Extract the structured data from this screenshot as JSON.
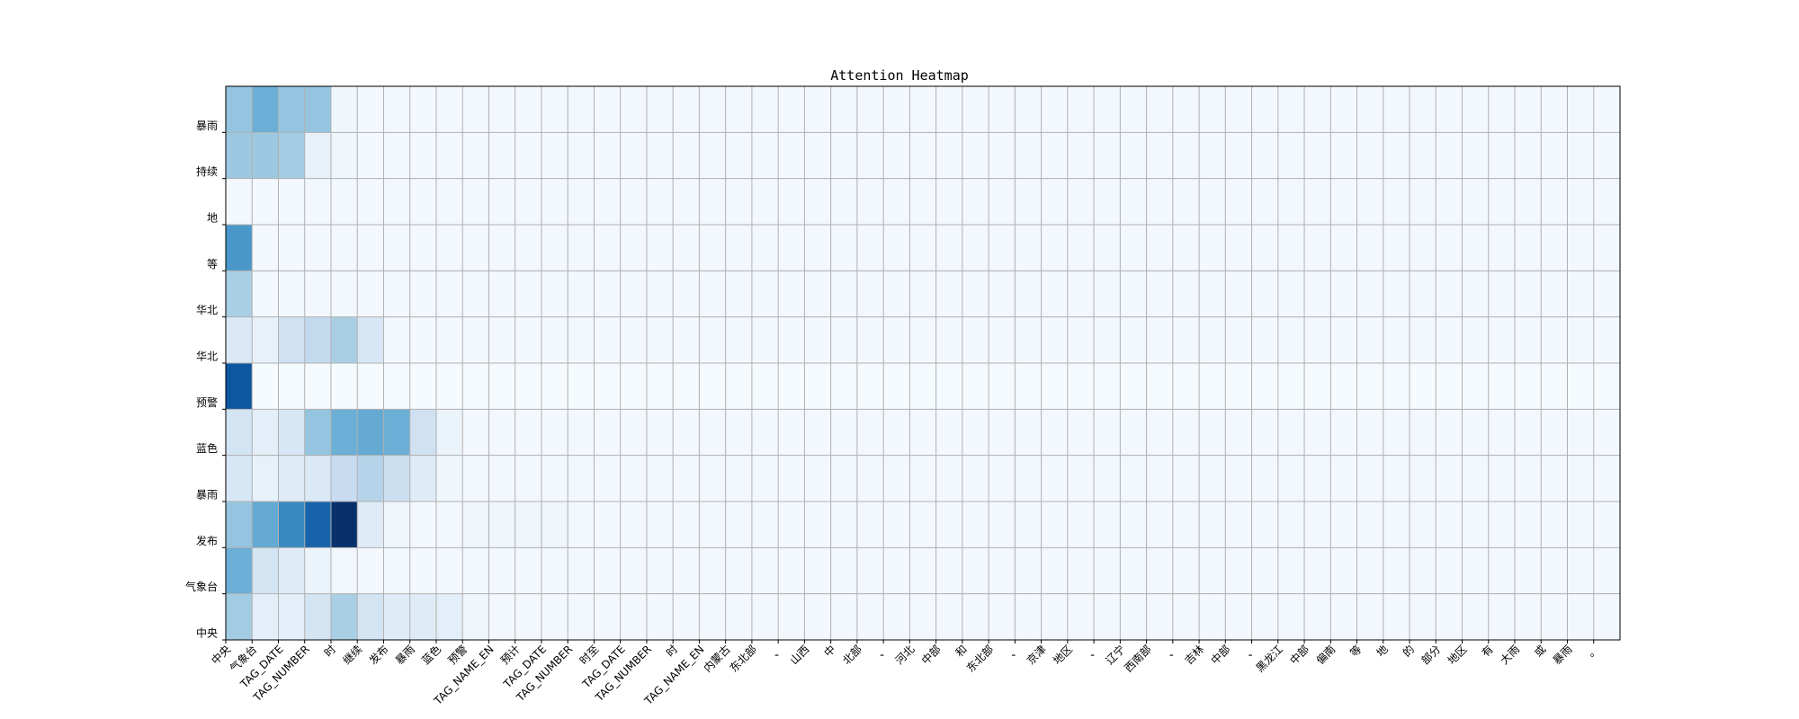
{
  "chart_data": {
    "type": "heatmap",
    "title": "Attention Heatmap",
    "x_labels": [
      "中央",
      "气象台",
      "TAG_DATE",
      "TAG_NUMBER",
      "时",
      "继续",
      "发布",
      "暴雨",
      "蓝色",
      "预警",
      "TAG_NAME_EN",
      "预计",
      "TAG_DATE",
      "TAG_NUMBER",
      "时至",
      "TAG_DATE",
      "TAG_NUMBER",
      "时",
      "TAG_NAME_EN",
      "内蒙古",
      "东北部",
      "、",
      "山西",
      "中",
      "北部",
      "、",
      "河北",
      "中部",
      "和",
      "东北部",
      "、",
      "京津",
      "地区",
      "、",
      "辽宁",
      "西南部",
      "、",
      "吉林",
      "中部",
      "、",
      "黑龙江",
      "中部",
      "偏南",
      "等",
      "地",
      "的",
      "部分",
      "地区",
      "有",
      "大雨",
      "或",
      "暴雨",
      "。"
    ],
    "y_labels": [
      "暴雨",
      "持续",
      "地",
      "等",
      "华北",
      "华北",
      "预警",
      "蓝色",
      "暴雨",
      "发布",
      "气象台",
      "中央"
    ],
    "values": [
      [
        0.4,
        0.5,
        0.4,
        0.4,
        0.04,
        0.02,
        0.02,
        0.02,
        0.02,
        0.02,
        0.02,
        0.02,
        0.02,
        0.02,
        0.02,
        0.02,
        0.02,
        0.02,
        0.02,
        0.02,
        0.02,
        0.02,
        0.02,
        0.02,
        0.02,
        0.02,
        0.02,
        0.02,
        0.02,
        0.02,
        0.02,
        0.02,
        0.02,
        0.02,
        0.02,
        0.02,
        0.02,
        0.02,
        0.02,
        0.02,
        0.02,
        0.02,
        0.02,
        0.02,
        0.02,
        0.02,
        0.02,
        0.02,
        0.02,
        0.02,
        0.02,
        0.02,
        0.02
      ],
      [
        0.38,
        0.38,
        0.36,
        0.08,
        0.04,
        0.02,
        0.02,
        0.02,
        0.02,
        0.02,
        0.02,
        0.02,
        0.02,
        0.02,
        0.02,
        0.02,
        0.02,
        0.02,
        0.02,
        0.02,
        0.02,
        0.02,
        0.02,
        0.02,
        0.02,
        0.02,
        0.02,
        0.02,
        0.02,
        0.02,
        0.02,
        0.02,
        0.02,
        0.02,
        0.02,
        0.02,
        0.02,
        0.02,
        0.02,
        0.02,
        0.02,
        0.02,
        0.02,
        0.02,
        0.02,
        0.02,
        0.02,
        0.02,
        0.02,
        0.02,
        0.02,
        0.02,
        0.02
      ],
      [
        0.02,
        0.02,
        0.02,
        0.02,
        0.02,
        0.02,
        0.02,
        0.02,
        0.02,
        0.02,
        0.02,
        0.02,
        0.02,
        0.02,
        0.02,
        0.02,
        0.02,
        0.02,
        0.02,
        0.02,
        0.02,
        0.02,
        0.02,
        0.02,
        0.02,
        0.02,
        0.02,
        0.02,
        0.02,
        0.02,
        0.02,
        0.02,
        0.02,
        0.02,
        0.02,
        0.02,
        0.02,
        0.02,
        0.02,
        0.02,
        0.02,
        0.02,
        0.02,
        0.02,
        0.02,
        0.02,
        0.02,
        0.02,
        0.02,
        0.02,
        0.02,
        0.02,
        0.02
      ],
      [
        0.6,
        0.02,
        0.02,
        0.02,
        0.02,
        0.02,
        0.02,
        0.02,
        0.02,
        0.02,
        0.02,
        0.02,
        0.02,
        0.02,
        0.02,
        0.02,
        0.02,
        0.02,
        0.02,
        0.02,
        0.02,
        0.02,
        0.02,
        0.02,
        0.02,
        0.02,
        0.02,
        0.02,
        0.02,
        0.02,
        0.02,
        0.02,
        0.02,
        0.02,
        0.02,
        0.02,
        0.02,
        0.02,
        0.02,
        0.02,
        0.02,
        0.02,
        0.02,
        0.02,
        0.02,
        0.02,
        0.02,
        0.02,
        0.02,
        0.02,
        0.02,
        0.02,
        0.02
      ],
      [
        0.34,
        0.02,
        0.02,
        0.02,
        0.02,
        0.02,
        0.02,
        0.02,
        0.02,
        0.02,
        0.02,
        0.02,
        0.02,
        0.02,
        0.02,
        0.02,
        0.02,
        0.02,
        0.02,
        0.02,
        0.02,
        0.02,
        0.02,
        0.02,
        0.02,
        0.02,
        0.02,
        0.02,
        0.02,
        0.02,
        0.02,
        0.02,
        0.02,
        0.02,
        0.02,
        0.02,
        0.02,
        0.02,
        0.02,
        0.02,
        0.02,
        0.02,
        0.02,
        0.02,
        0.02,
        0.02,
        0.02,
        0.02,
        0.02,
        0.02,
        0.02,
        0.02,
        0.02
      ],
      [
        0.14,
        0.08,
        0.2,
        0.26,
        0.34,
        0.16,
        0.02,
        0.02,
        0.02,
        0.02,
        0.02,
        0.02,
        0.02,
        0.02,
        0.02,
        0.02,
        0.02,
        0.02,
        0.02,
        0.02,
        0.02,
        0.02,
        0.02,
        0.02,
        0.02,
        0.02,
        0.02,
        0.02,
        0.02,
        0.02,
        0.02,
        0.02,
        0.02,
        0.02,
        0.02,
        0.02,
        0.02,
        0.02,
        0.02,
        0.02,
        0.02,
        0.02,
        0.02,
        0.02,
        0.02,
        0.02,
        0.02,
        0.02,
        0.02,
        0.02,
        0.02,
        0.02,
        0.02
      ],
      [
        0.85,
        0.01,
        0.01,
        0.01,
        0.01,
        0.01,
        0.01,
        0.01,
        0.01,
        0.01,
        0.01,
        0.01,
        0.01,
        0.01,
        0.01,
        0.01,
        0.01,
        0.01,
        0.01,
        0.01,
        0.01,
        0.01,
        0.01,
        0.01,
        0.01,
        0.01,
        0.01,
        0.01,
        0.01,
        0.01,
        0.01,
        0.01,
        0.01,
        0.01,
        0.01,
        0.01,
        0.01,
        0.01,
        0.01,
        0.01,
        0.01,
        0.01,
        0.01,
        0.01,
        0.01,
        0.01,
        0.01,
        0.01,
        0.01,
        0.01,
        0.01,
        0.01,
        0.01
      ],
      [
        0.18,
        0.1,
        0.16,
        0.4,
        0.5,
        0.52,
        0.5,
        0.2,
        0.06,
        0.02,
        0.02,
        0.02,
        0.02,
        0.02,
        0.02,
        0.02,
        0.02,
        0.02,
        0.02,
        0.02,
        0.02,
        0.02,
        0.02,
        0.02,
        0.02,
        0.02,
        0.02,
        0.02,
        0.02,
        0.02,
        0.02,
        0.02,
        0.02,
        0.02,
        0.02,
        0.02,
        0.02,
        0.02,
        0.02,
        0.02,
        0.02,
        0.02,
        0.02,
        0.02,
        0.02,
        0.02,
        0.02,
        0.02,
        0.02,
        0.02,
        0.02,
        0.02,
        0.02
      ],
      [
        0.16,
        0.08,
        0.12,
        0.14,
        0.24,
        0.3,
        0.22,
        0.12,
        0.04,
        0.02,
        0.02,
        0.02,
        0.02,
        0.02,
        0.02,
        0.02,
        0.02,
        0.02,
        0.02,
        0.02,
        0.02,
        0.02,
        0.02,
        0.02,
        0.02,
        0.02,
        0.02,
        0.02,
        0.02,
        0.02,
        0.02,
        0.02,
        0.02,
        0.02,
        0.02,
        0.02,
        0.02,
        0.02,
        0.02,
        0.02,
        0.02,
        0.02,
        0.02,
        0.02,
        0.02,
        0.02,
        0.02,
        0.02,
        0.02,
        0.02,
        0.02,
        0.02,
        0.02
      ],
      [
        0.4,
        0.52,
        0.66,
        0.8,
        1.0,
        0.12,
        0.04,
        0.02,
        0.02,
        0.04,
        0.04,
        0.04,
        0.04,
        0.02,
        0.02,
        0.02,
        0.02,
        0.02,
        0.02,
        0.02,
        0.02,
        0.02,
        0.02,
        0.02,
        0.02,
        0.02,
        0.02,
        0.02,
        0.02,
        0.02,
        0.02,
        0.02,
        0.02,
        0.02,
        0.02,
        0.02,
        0.02,
        0.02,
        0.02,
        0.02,
        0.02,
        0.02,
        0.02,
        0.02,
        0.02,
        0.02,
        0.02,
        0.02,
        0.02,
        0.02,
        0.02,
        0.02,
        0.02
      ],
      [
        0.5,
        0.18,
        0.12,
        0.06,
        0.03,
        0.02,
        0.02,
        0.02,
        0.02,
        0.02,
        0.02,
        0.02,
        0.02,
        0.02,
        0.02,
        0.02,
        0.02,
        0.02,
        0.02,
        0.02,
        0.02,
        0.02,
        0.02,
        0.02,
        0.02,
        0.02,
        0.02,
        0.02,
        0.02,
        0.02,
        0.02,
        0.02,
        0.02,
        0.02,
        0.02,
        0.02,
        0.02,
        0.02,
        0.02,
        0.02,
        0.02,
        0.02,
        0.02,
        0.02,
        0.02,
        0.02,
        0.02,
        0.02,
        0.02,
        0.02,
        0.02,
        0.02,
        0.02
      ],
      [
        0.36,
        0.1,
        0.1,
        0.18,
        0.34,
        0.18,
        0.12,
        0.12,
        0.1,
        0.04,
        0.02,
        0.02,
        0.02,
        0.02,
        0.02,
        0.02,
        0.02,
        0.02,
        0.02,
        0.02,
        0.02,
        0.02,
        0.02,
        0.02,
        0.02,
        0.02,
        0.02,
        0.02,
        0.02,
        0.02,
        0.02,
        0.02,
        0.02,
        0.02,
        0.02,
        0.02,
        0.02,
        0.02,
        0.02,
        0.02,
        0.02,
        0.02,
        0.02,
        0.02,
        0.02,
        0.02,
        0.02,
        0.02,
        0.02,
        0.02,
        0.02,
        0.02,
        0.02
      ]
    ],
    "colormap": "Blues",
    "color_low": "#f7fbff",
    "color_high": "#08306b",
    "grid": true,
    "grid_color": "#b0b0b0"
  }
}
